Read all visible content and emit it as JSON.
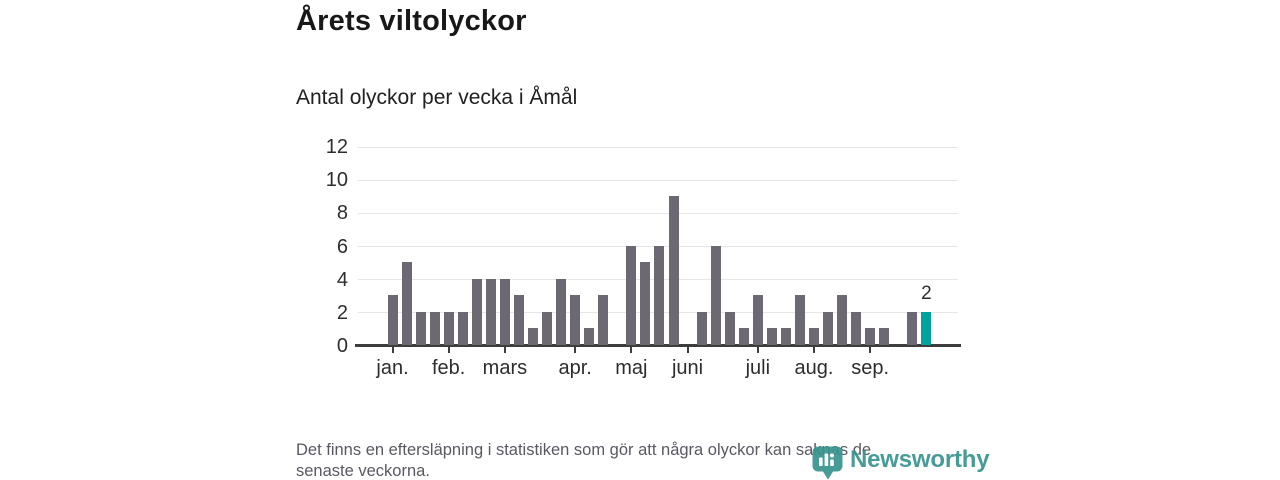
{
  "title": "Årets viltolyckor",
  "subtitle": "Antal olyckor per vecka i Åmål",
  "footnote": {
    "line1": "Det finns en eftersläpning i statistiken som gör att några olyckor kan saknas de",
    "line2": "senaste veckorna."
  },
  "logo": {
    "name": "Newsworthy",
    "color": "#38948f"
  },
  "colors": {
    "bar": "#6c6972",
    "highlight": "#00a39c",
    "axis": "#3d3d3d",
    "gridline": "#e6e6e6",
    "label_text": "#2d2d2d",
    "footnote_text": "#5a5862"
  },
  "chart_data": {
    "type": "bar",
    "x_unit": "week",
    "weeks": [
      1,
      2,
      3,
      4,
      5,
      6,
      7,
      8,
      9,
      10,
      11,
      12,
      13,
      14,
      15,
      16,
      17,
      18,
      19,
      20,
      21,
      22,
      23,
      24,
      25,
      26,
      27,
      28,
      29,
      30,
      31,
      32,
      33,
      34,
      35,
      36,
      37,
      38,
      39
    ],
    "values": [
      3,
      5,
      2,
      2,
      2,
      2,
      4,
      4,
      4,
      3,
      1,
      2,
      4,
      3,
      1,
      3,
      0,
      6,
      5,
      6,
      9,
      0,
      2,
      6,
      2,
      1,
      3,
      1,
      1,
      3,
      1,
      2,
      3,
      2,
      1,
      1,
      0,
      2,
      2
    ],
    "highlight_index": 38,
    "highlight_value_label": "2",
    "title": "Årets viltolyckor",
    "subtitle": "Antal olyckor per vecka i Åmål",
    "ylim": [
      0,
      12
    ],
    "yticks": [
      0,
      2,
      4,
      6,
      8,
      10,
      12
    ],
    "grid": "horizontal",
    "legend": "none",
    "month_ticks": [
      {
        "label": "jan.",
        "week": 1
      },
      {
        "label": "feb.",
        "week": 5
      },
      {
        "label": "mars",
        "week": 9
      },
      {
        "label": "apr.",
        "week": 14
      },
      {
        "label": "maj",
        "week": 18
      },
      {
        "label": "juni",
        "week": 22
      },
      {
        "label": "juli",
        "week": 27
      },
      {
        "label": "aug.",
        "week": 31
      },
      {
        "label": "sep.",
        "week": 35
      }
    ]
  }
}
